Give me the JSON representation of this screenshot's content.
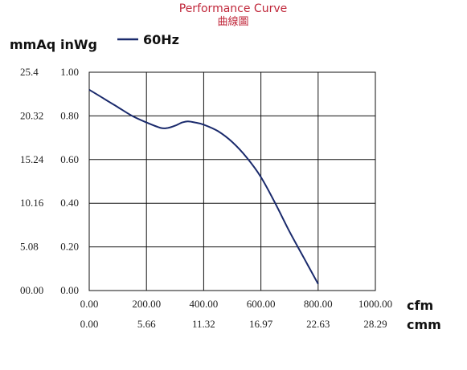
{
  "chart_data": {
    "type": "line",
    "title": "Performance Curve",
    "subtitle": "曲線圖",
    "ylabel_left": "mmAq",
    "ylabel_right": "inWg",
    "xlabel_primary": "cfm",
    "xlabel_secondary": "cmm",
    "xlim": [
      0,
      1000
    ],
    "ylim": [
      0,
      1.0
    ],
    "x_ticks": [
      "0.00",
      "200.00",
      "400.00",
      "600.00",
      "800.00",
      "1000.00"
    ],
    "x_ticks_secondary": [
      "0.00",
      "5.66",
      "11.32",
      "16.97",
      "22.63",
      "28.29"
    ],
    "y_ticks_inwg": [
      "0.00",
      "0.20",
      "0.40",
      "0.60",
      "0.80",
      "1.00"
    ],
    "y_ticks_mmaq": [
      "00.00",
      "5.08",
      "10.16",
      "15.24",
      "20.32",
      "25.4"
    ],
    "grid": true,
    "legend_position": "top-left",
    "series": [
      {
        "name": "60Hz",
        "color": "#1a2a6c",
        "x": [
          0,
          50,
          100,
          150,
          200,
          250,
          275,
          300,
          325,
          345,
          370,
          400,
          450,
          500,
          550,
          600,
          650,
          700,
          750,
          800
        ],
        "y": [
          0.92,
          0.88,
          0.84,
          0.8,
          0.77,
          0.745,
          0.745,
          0.755,
          0.77,
          0.775,
          0.77,
          0.76,
          0.73,
          0.68,
          0.61,
          0.52,
          0.4,
          0.27,
          0.15,
          0.03
        ]
      }
    ]
  }
}
